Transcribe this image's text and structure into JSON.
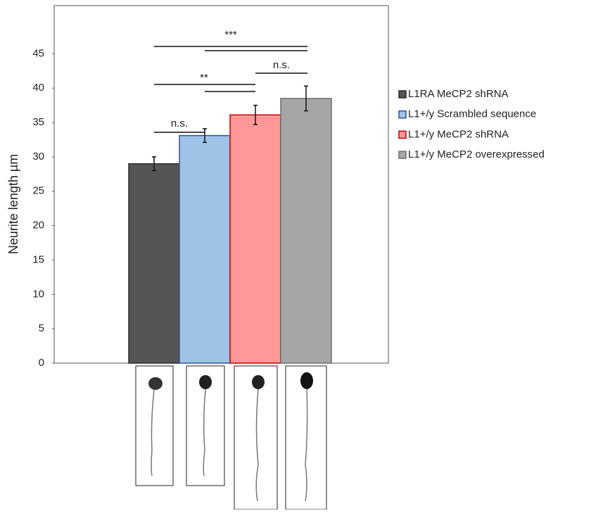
{
  "chart_data": {
    "type": "bar",
    "y_label": "Neurite length µm",
    "categories": [
      null
    ],
    "series": [
      {
        "name": "L1RA MeCP2 shRNA",
        "color": "#555555",
        "edge": "#2b2b2b",
        "values": [
          29.0
        ],
        "errors": [
          1.0
        ]
      },
      {
        "name": "L1+/y Scrambled sequence",
        "color": "#9dc3e6",
        "edge": "#2f5597",
        "values": [
          33.1
        ],
        "errors": [
          1.0
        ]
      },
      {
        "name": "L1+/y MeCP2 shRNA",
        "color": "#ff9999",
        "edge": "#c00000",
        "values": [
          36.1
        ],
        "errors": [
          1.4
        ]
      },
      {
        "name": "L1+/y MeCP2 overexpressed",
        "color": "#a6a6a6",
        "edge": "#6f6f6f",
        "values": [
          38.5
        ],
        "errors": [
          1.8
        ]
      }
    ],
    "ylim": [
      0,
      52
    ],
    "yticks": [
      0,
      5,
      10,
      15,
      20,
      25,
      30,
      35,
      40,
      45
    ],
    "legend": "right",
    "annotations": [
      "***",
      "n.s.",
      "**",
      "n.s."
    ]
  }
}
